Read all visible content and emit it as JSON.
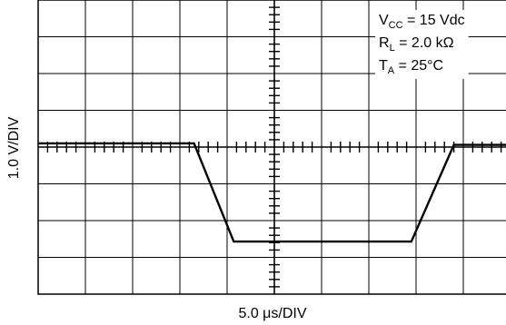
{
  "chart_data": {
    "type": "line",
    "xlabel": "5.0 μs/DIV",
    "ylabel": "1.0 V/DIV",
    "x_units_per_div": 5.0,
    "y_units_per_div": 1.0,
    "x_divisions": 10,
    "y_divisions": 8,
    "grid": true,
    "annotation_lines": [
      {
        "main": "V",
        "sub": "CC",
        "rest": " = 15 Vdc"
      },
      {
        "main": "R",
        "sub": "L",
        "rest": " = 2.0 kΩ"
      },
      {
        "main": "T",
        "sub": "A",
        "rest": " = 25°C"
      }
    ],
    "series": [
      {
        "x": [
          -25,
          -8.5,
          -4.3,
          14.5,
          19.0,
          25
        ],
        "y": [
          0.1,
          0.1,
          -2.57,
          -2.57,
          0.06,
          0.06
        ]
      }
    ]
  }
}
